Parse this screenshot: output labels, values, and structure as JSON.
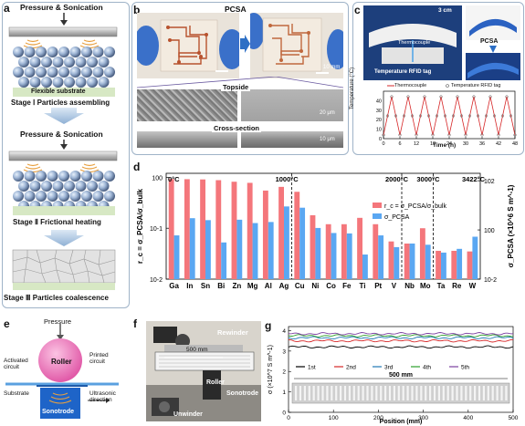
{
  "panel_labels": {
    "a": "a",
    "b": "b",
    "c": "c",
    "d": "d",
    "e": "e",
    "f": "f",
    "g": "g"
  },
  "panel_a": {
    "top_label": "Pressure & Sonication",
    "substrate": "Flexible substrate",
    "stage1": "Stage Ⅰ  Particles assembling",
    "mid_label": "Pressure & Sonication",
    "stage2": "Stage Ⅱ  Frictional heating",
    "stage3": "Stage Ⅲ  Particles coalescence"
  },
  "panel_b": {
    "title": "PCSA",
    "scale_photo": "10 mm",
    "topside": "Topside",
    "cross_section": "Cross-section",
    "scale_sem_top": "20 μm",
    "scale_sem_cross": "10 μm"
  },
  "panel_c": {
    "scale": "3 cm",
    "thermocouple": "Thermocouple",
    "rfid": "Temperature RFID tag",
    "pcsa": "PCSA",
    "legend_thermocouple": "Thermocouple",
    "legend_rfid": "Temperature RFID tag",
    "ylabel": "Temperature (°C)",
    "xlabel": "Time (h)",
    "xticks": [
      "0",
      "6",
      "12",
      "18",
      "24",
      "30",
      "36",
      "42",
      "48"
    ],
    "yticks": [
      "0",
      "10",
      "20",
      "30",
      "40"
    ]
  },
  "chart_data": {
    "type": "bar",
    "categories": [
      "Ga",
      "In",
      "Sn",
      "Bi",
      "Zn",
      "Mg",
      "Al",
      "Ag",
      "Cu",
      "Ni",
      "Co",
      "Fe",
      "Ti",
      "Pt",
      "V",
      "Nb",
      "Mo",
      "Ta",
      "Re",
      "W"
    ],
    "series": [
      {
        "name": "r_c = σ_PCSA/σ_bulk",
        "color": "#f4767b",
        "values": [
          0.93,
          0.92,
          0.91,
          0.88,
          0.82,
          0.78,
          0.55,
          0.65,
          0.52,
          0.18,
          0.12,
          0.12,
          0.16,
          0.12,
          0.055,
          0.05,
          0.1,
          0.036,
          0.036,
          0.035
        ]
      },
      {
        "name": "σ_PCSA",
        "color": "#5aa7f2",
        "values": [
          0.6,
          3.0,
          2.5,
          0.31,
          2.6,
          1.9,
          2.1,
          9.0,
          8.0,
          1.2,
          0.75,
          0.72,
          0.1,
          0.6,
          0.2,
          0.28,
          0.25,
          0.12,
          0.17,
          0.53
        ]
      }
    ],
    "ylabel_left": "r_c = σ_PCSA/σ_bulk",
    "ylabel_right": "σ_PCSA (×10^6 S m^-1)",
    "left_scale": "log",
    "ylim_left": [
      0.01,
      1.2
    ],
    "right_scale": "log",
    "ylim_right": [
      0.01,
      200
    ],
    "left_ticks": [
      "10^-2",
      "10^-1",
      "10^0"
    ],
    "right_ticks": [
      "10^-2",
      "10^0",
      "10^2"
    ],
    "temperature_markers": [
      {
        "label": "0°C"
      },
      {
        "label": "1000°C"
      },
      {
        "label": "2000°C"
      },
      {
        "label": "3000°C"
      },
      {
        "label": "3422°C"
      }
    ],
    "legend_position": "top-right"
  },
  "panel_e": {
    "pressure": "Pressure",
    "roller": "Roller",
    "activated": "Activated circuit",
    "printed": "Printed circuit",
    "substrate": "Substrate",
    "ultrasonic": "Ultrasonic direction",
    "sonotrode": "Sonotrode"
  },
  "panel_f": {
    "rewinder": "Rewinder",
    "length": "500 mm",
    "roller": "Roller",
    "sonotrode": "Sonotrode",
    "unwinder": "Unwinder"
  },
  "panel_g": {
    "ylabel": "σ (×10^7 S m^-1)",
    "xlabel": "Position (mm)",
    "xticks": [
      "0",
      "100",
      "200",
      "300",
      "400",
      "500"
    ],
    "yticks": [
      "0",
      "1",
      "2",
      "3",
      "4"
    ],
    "legend": [
      "1st",
      "2nd",
      "3rd",
      "4th",
      "5th"
    ],
    "colors": [
      "#000000",
      "#d62728",
      "#1f77b4",
      "#2ca02c",
      "#7b3fa0"
    ],
    "length_label": "500 mm"
  }
}
